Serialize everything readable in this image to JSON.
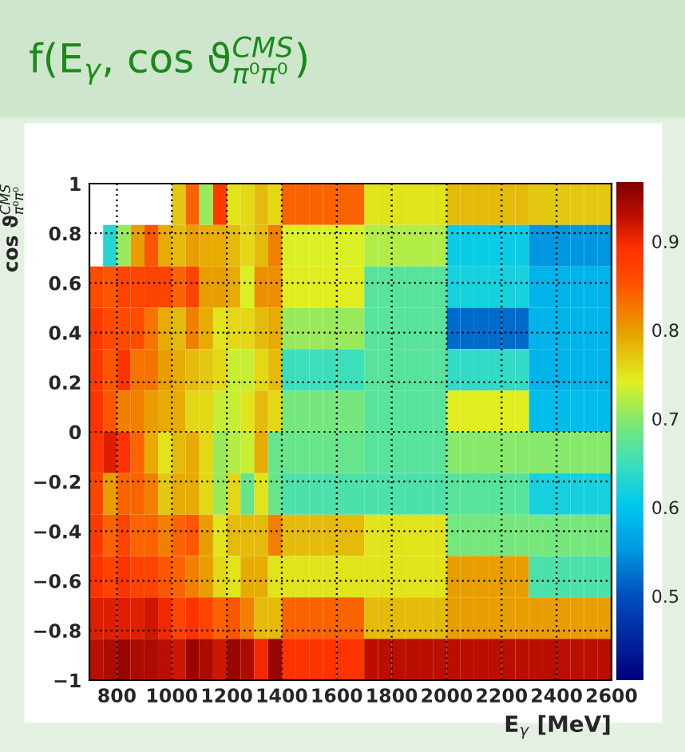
{
  "chart_data": {
    "type": "heatmap",
    "title": "f(E$_{γ}$, cos ϑ$^{CMS}$$_{π⁰π⁰}$)",
    "xlabel": "E$_{γ}$ [MeV]",
    "ylabel": "cos ϑ$^{CMS}$$_{π⁰π⁰}$",
    "cells": [
      [
        null,
        null,
        null,
        null,
        null,
        null,
        0.77,
        0.84,
        0.71,
        0.88,
        0.75,
        0.76,
        0.78,
        0.76,
        0.84,
        0.84,
        0.84,
        0.84,
        0.84,
        0.84,
        0.75,
        0.75,
        0.75,
        0.75,
        0.75,
        0.75,
        0.78,
        0.78,
        0.78,
        0.78,
        0.78,
        0.78,
        0.77,
        0.77,
        0.77,
        0.77,
        0.77,
        0.77
      ],
      [
        null,
        0.63,
        0.71,
        0.8,
        0.85,
        0.79,
        0.78,
        0.8,
        0.79,
        0.79,
        0.78,
        0.76,
        0.78,
        0.82,
        0.74,
        0.74,
        0.74,
        0.74,
        0.74,
        0.74,
        0.72,
        0.72,
        0.72,
        0.72,
        0.72,
        0.72,
        0.61,
        0.61,
        0.61,
        0.61,
        0.61,
        0.61,
        0.55,
        0.55,
        0.55,
        0.55,
        0.55,
        0.55
      ],
      [
        0.86,
        0.85,
        0.87,
        0.87,
        0.87,
        0.87,
        0.84,
        0.87,
        0.8,
        0.8,
        0.79,
        0.74,
        0.81,
        0.81,
        0.745,
        0.745,
        0.745,
        0.745,
        0.745,
        0.745,
        0.67,
        0.67,
        0.67,
        0.67,
        0.67,
        0.67,
        0.62,
        0.62,
        0.62,
        0.62,
        0.62,
        0.62,
        0.58,
        0.58,
        0.58,
        0.58,
        0.58,
        0.58
      ],
      [
        0.88,
        0.86,
        0.86,
        0.86,
        0.83,
        0.79,
        0.78,
        0.82,
        0.79,
        0.75,
        0.76,
        0.76,
        0.78,
        0.79,
        0.71,
        0.71,
        0.71,
        0.71,
        0.71,
        0.71,
        0.67,
        0.67,
        0.67,
        0.67,
        0.67,
        0.67,
        0.52,
        0.52,
        0.52,
        0.52,
        0.52,
        0.52,
        0.58,
        0.58,
        0.58,
        0.58,
        0.58,
        0.58
      ],
      [
        0.88,
        0.85,
        0.89,
        0.83,
        0.83,
        0.8,
        0.79,
        0.78,
        0.77,
        0.76,
        0.73,
        0.73,
        0.76,
        0.78,
        0.65,
        0.65,
        0.65,
        0.65,
        0.65,
        0.65,
        0.67,
        0.67,
        0.67,
        0.67,
        0.67,
        0.67,
        0.64,
        0.64,
        0.64,
        0.64,
        0.64,
        0.64,
        0.58,
        0.58,
        0.58,
        0.58,
        0.58,
        0.58
      ],
      [
        0.89,
        0.85,
        0.82,
        0.82,
        0.8,
        0.79,
        0.79,
        0.76,
        0.76,
        0.73,
        0.73,
        0.75,
        0.78,
        0.76,
        0.69,
        0.69,
        0.69,
        0.69,
        0.69,
        0.69,
        0.67,
        0.67,
        0.67,
        0.67,
        0.67,
        0.67,
        0.745,
        0.745,
        0.745,
        0.745,
        0.745,
        0.745,
        0.59,
        0.59,
        0.59,
        0.59,
        0.59,
        0.59
      ],
      [
        0.89,
        0.91,
        0.89,
        0.84,
        0.79,
        0.75,
        0.78,
        0.79,
        0.76,
        0.71,
        0.72,
        0.73,
        0.79,
        0.68,
        0.68,
        0.68,
        0.68,
        0.68,
        0.68,
        0.68,
        0.67,
        0.67,
        0.67,
        0.67,
        0.67,
        0.67,
        0.7,
        0.7,
        0.7,
        0.7,
        0.7,
        0.7,
        0.7,
        0.7,
        0.7,
        0.7,
        0.7,
        0.7
      ],
      [
        0.87,
        0.8,
        0.84,
        0.84,
        0.82,
        0.77,
        0.79,
        0.79,
        0.76,
        0.71,
        0.76,
        0.68,
        0.75,
        0.68,
        0.66,
        0.66,
        0.66,
        0.66,
        0.66,
        0.66,
        0.66,
        0.66,
        0.66,
        0.66,
        0.66,
        0.66,
        0.67,
        0.67,
        0.67,
        0.67,
        0.67,
        0.67,
        0.62,
        0.62,
        0.62,
        0.62,
        0.62,
        0.62
      ],
      [
        0.88,
        0.84,
        0.87,
        0.84,
        0.84,
        0.82,
        0.84,
        0.85,
        0.8,
        0.75,
        0.78,
        0.78,
        0.78,
        0.82,
        0.78,
        0.78,
        0.78,
        0.78,
        0.78,
        0.78,
        0.75,
        0.75,
        0.75,
        0.75,
        0.75,
        0.75,
        0.69,
        0.69,
        0.69,
        0.69,
        0.69,
        0.69,
        0.69,
        0.69,
        0.69,
        0.69,
        0.69,
        0.69
      ],
      [
        0.89,
        0.87,
        0.89,
        0.87,
        0.87,
        0.85,
        0.84,
        0.82,
        0.8,
        0.76,
        0.75,
        0.79,
        0.79,
        0.75,
        0.75,
        0.75,
        0.75,
        0.75,
        0.75,
        0.75,
        0.75,
        0.75,
        0.75,
        0.75,
        0.75,
        0.75,
        0.8,
        0.8,
        0.8,
        0.8,
        0.8,
        0.8,
        0.66,
        0.66,
        0.66,
        0.66,
        0.66,
        0.66
      ],
      [
        0.91,
        0.91,
        0.91,
        0.91,
        0.92,
        0.9,
        0.87,
        0.89,
        0.87,
        0.84,
        0.85,
        0.82,
        0.78,
        0.78,
        0.84,
        0.84,
        0.84,
        0.84,
        0.84,
        0.84,
        0.78,
        0.78,
        0.78,
        0.78,
        0.78,
        0.78,
        0.8,
        0.8,
        0.8,
        0.8,
        0.8,
        0.8,
        0.8,
        0.8,
        0.8,
        0.8,
        0.8,
        0.8
      ],
      [
        0.93,
        0.94,
        0.95,
        0.94,
        0.94,
        0.93,
        0.92,
        0.95,
        0.94,
        0.92,
        0.95,
        0.94,
        0.9,
        0.95,
        0.89,
        0.89,
        0.89,
        0.89,
        0.89,
        0.89,
        0.93,
        0.93,
        0.93,
        0.93,
        0.93,
        0.93,
        0.93,
        0.93,
        0.93,
        0.93,
        0.93,
        0.93,
        0.93,
        0.93,
        0.93,
        0.93,
        0.93,
        0.93
      ]
    ],
    "xlim": [
      700,
      2600
    ],
    "xticks": [
      800,
      1000,
      1200,
      1400,
      1600,
      1800,
      2000,
      2200,
      2400,
      2600
    ],
    "ylim": [
      -1,
      1
    ],
    "yticks": [
      {
        "value": -1,
        "label": "−1"
      },
      {
        "value": -0.8,
        "label": "−0.8"
      },
      {
        "value": -0.6,
        "label": "−0.6"
      },
      {
        "value": -0.4,
        "label": "−0.4"
      },
      {
        "value": -0.2,
        "label": "−0.2"
      },
      0,
      0.2,
      0.4,
      0.6,
      0.8,
      1
    ],
    "clim": [
      0.405,
      0.967
    ],
    "cticks": [
      0.5,
      0.6,
      0.7,
      0.8,
      0.9
    ],
    "grid": true
  }
}
